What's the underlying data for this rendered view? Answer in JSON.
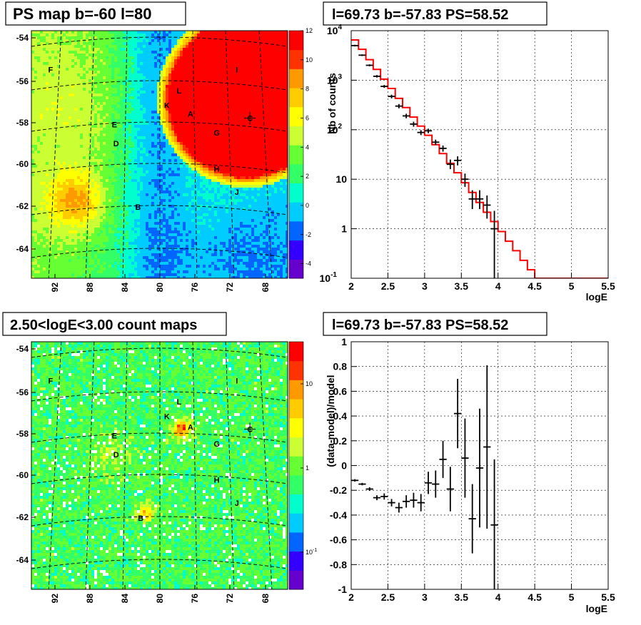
{
  "panels": {
    "ps_map": {
      "title": "PS map b=-60 l=80"
    },
    "spectrum": {
      "title": "l=69.73 b=-57.83 PS=58.52"
    },
    "count_map": {
      "title": "2.50<logE<3.00 count maps"
    },
    "residual": {
      "title": "l=69.73 b=-57.83 PS=58.52"
    }
  },
  "colors": {
    "model_line": "#ff0000",
    "data_points": "#000000",
    "palette": [
      "#6600cc",
      "#3300ff",
      "#0066ff",
      "#00ccff",
      "#00ffcc",
      "#33ff66",
      "#66ff33",
      "#ccff33",
      "#ffff00",
      "#ffcc00",
      "#ff9900",
      "#ff3300",
      "#ff0000"
    ]
  },
  "sky_maps": {
    "b_ticks": [
      "-54",
      "-56",
      "-58",
      "-60",
      "-62",
      "-64"
    ],
    "l_ticks": [
      "92",
      "88",
      "84",
      "80",
      "76",
      "72",
      "68"
    ],
    "sources": [
      "A",
      "B",
      "C",
      "D",
      "E",
      "F",
      "G",
      "H",
      "I",
      "J",
      "K",
      "L"
    ]
  },
  "chart_data": [
    {
      "type": "heatmap",
      "title": "PS map b=-60 l=80",
      "xlabel": "",
      "ylabel": "",
      "x_range": [
        93.5,
        65.5
      ],
      "y_range": [
        -65.3,
        -53.4
      ],
      "colorbar": {
        "min": -5,
        "max": 12,
        "ticks": [
          "12",
          "10",
          "8",
          "6",
          "4",
          "2",
          "0",
          "-2",
          "-4"
        ],
        "scale": "linear"
      },
      "sources": [
        {
          "name": "A",
          "l": 76.5,
          "b": -57.6
        },
        {
          "name": "B",
          "l": 82.5,
          "b": -62.0
        },
        {
          "name": "C",
          "l": 69.7,
          "b": -57.8
        },
        {
          "name": "D",
          "l": 85.0,
          "b": -59.0
        },
        {
          "name": "E",
          "l": 85.2,
          "b": -58.1
        },
        {
          "name": "F",
          "l": 92.5,
          "b": -55.5
        },
        {
          "name": "G",
          "l": 73.5,
          "b": -58.5
        },
        {
          "name": "H",
          "l": 73.5,
          "b": -60.2
        },
        {
          "name": "I",
          "l": 71.2,
          "b": -55.5
        },
        {
          "name": "J",
          "l": 71.2,
          "b": -61.3
        },
        {
          "name": "K",
          "l": 79.2,
          "b": -57.2
        },
        {
          "name": "L",
          "l": 77.8,
          "b": -56.5
        }
      ]
    },
    {
      "type": "line",
      "title": "l=69.73 b=-57.83 PS=58.52",
      "xlabel": "logE",
      "ylabel": "Nb of counts",
      "xlim": [
        2,
        5.5
      ],
      "ylim": [
        0.1,
        10000
      ],
      "yscale": "log",
      "grid": true,
      "x_ticks": [
        "2",
        "2.5",
        "3",
        "3.5",
        "4",
        "4.5",
        "5",
        "5.5"
      ],
      "y_ticks": [
        {
          "v": 0.1,
          "base": "10",
          "exp": "-1"
        },
        {
          "v": 1,
          "base": "1",
          "exp": ""
        },
        {
          "v": 10,
          "base": "10",
          "exp": ""
        },
        {
          "v": 100,
          "base": "10",
          "exp": "2"
        },
        {
          "v": 1000,
          "base": "10",
          "exp": "3"
        },
        {
          "v": 10000,
          "base": "10",
          "exp": "4"
        }
      ],
      "model": {
        "name": "model",
        "bin_width": 0.1,
        "edges": [
          2.0,
          2.1,
          2.2,
          2.3,
          2.4,
          2.5,
          2.6,
          2.7,
          2.8,
          2.9,
          3.0,
          3.1,
          3.2,
          3.3,
          3.4,
          3.5,
          3.6,
          3.7,
          3.8,
          3.9,
          4.0,
          4.1,
          4.2,
          4.3,
          4.4,
          4.5,
          4.6,
          4.7,
          4.8,
          4.9,
          5.0,
          5.1,
          5.2,
          5.3,
          5.4
        ],
        "values": [
          6500,
          4200,
          2600,
          1650,
          1050,
          680,
          430,
          280,
          180,
          118,
          77,
          50,
          33,
          21,
          13.5,
          8.5,
          5.4,
          3.4,
          2.15,
          1.4,
          0.88,
          0.56,
          0.36,
          0.23,
          0.148,
          0.1,
          0.1,
          0.1,
          0.1,
          0.1,
          0.1,
          0.1,
          0.1,
          0.1,
          0.1
        ]
      },
      "data": {
        "name": "data",
        "points": [
          {
            "x": 2.05,
            "y": 5000,
            "lo": 4800,
            "hi": 5200
          },
          {
            "x": 2.15,
            "y": 3200,
            "lo": 3080,
            "hi": 3320
          },
          {
            "x": 2.25,
            "y": 2000,
            "lo": 1910,
            "hi": 2090
          },
          {
            "x": 2.35,
            "y": 1200,
            "lo": 1130,
            "hi": 1270
          },
          {
            "x": 2.45,
            "y": 750,
            "lo": 700,
            "hi": 800
          },
          {
            "x": 2.55,
            "y": 470,
            "lo": 430,
            "hi": 510
          },
          {
            "x": 2.65,
            "y": 300,
            "lo": 270,
            "hi": 330
          },
          {
            "x": 2.75,
            "y": 190,
            "lo": 170,
            "hi": 210
          },
          {
            "x": 2.85,
            "y": 130,
            "lo": 115,
            "hi": 145
          },
          {
            "x": 2.95,
            "y": 88,
            "lo": 78,
            "hi": 98
          },
          {
            "x": 3.05,
            "y": 95,
            "lo": 85,
            "hi": 105
          },
          {
            "x": 3.15,
            "y": 56,
            "lo": 49,
            "hi": 63
          },
          {
            "x": 3.25,
            "y": 42,
            "lo": 36,
            "hi": 48
          },
          {
            "x": 3.35,
            "y": 20,
            "lo": 16,
            "hi": 25
          },
          {
            "x": 3.45,
            "y": 24,
            "lo": 19,
            "hi": 29
          },
          {
            "x": 3.55,
            "y": 10,
            "lo": 7,
            "hi": 13
          },
          {
            "x": 3.65,
            "y": 4,
            "lo": 2.5,
            "hi": 6
          },
          {
            "x": 3.75,
            "y": 4,
            "lo": 2.5,
            "hi": 6
          },
          {
            "x": 3.85,
            "y": 3,
            "lo": 1.6,
            "hi": 4.7
          },
          {
            "x": 3.95,
            "y": 1,
            "lo": 0.1,
            "hi": 2.3
          }
        ]
      }
    },
    {
      "type": "heatmap",
      "title": "2.50<logE<3.00 count maps",
      "xlabel": "",
      "ylabel": "",
      "x_range": [
        93.5,
        65.5
      ],
      "y_range": [
        -65.3,
        -53.4
      ],
      "colorbar": {
        "ticks": [
          "10",
          "1",
          "10"
        ],
        "tick_exp": [
          "",
          "",
          "-1"
        ],
        "scale": "log"
      },
      "sources": [
        {
          "name": "A",
          "l": 76.5,
          "b": -57.7
        },
        {
          "name": "B",
          "l": 82.2,
          "b": -62.0
        },
        {
          "name": "C",
          "l": 69.7,
          "b": -57.8
        },
        {
          "name": "D",
          "l": 85.0,
          "b": -59.0
        },
        {
          "name": "E",
          "l": 85.2,
          "b": -58.1
        },
        {
          "name": "F",
          "l": 92.5,
          "b": -55.5
        },
        {
          "name": "G",
          "l": 73.5,
          "b": -58.5
        },
        {
          "name": "H",
          "l": 73.5,
          "b": -60.2
        },
        {
          "name": "I",
          "l": 71.2,
          "b": -55.5
        },
        {
          "name": "J",
          "l": 71.2,
          "b": -61.3
        },
        {
          "name": "K",
          "l": 79.2,
          "b": -57.2
        },
        {
          "name": "L",
          "l": 77.8,
          "b": -56.5
        }
      ]
    },
    {
      "type": "scatter",
      "title": "l=69.73 b=-57.83 PS=58.52",
      "xlabel": "logE",
      "ylabel": "(data-model)/model",
      "xlim": [
        2,
        5.5
      ],
      "ylim": [
        -1,
        1
      ],
      "grid": true,
      "x_ticks": [
        "2",
        "2.5",
        "3",
        "3.5",
        "4",
        "4.5",
        "5",
        "5.5"
      ],
      "y_ticks": [
        "-1",
        "-0.8",
        "-0.6",
        "-0.4",
        "-0.2",
        "0",
        "0.2",
        "0.4",
        "0.6",
        "0.8",
        "1"
      ],
      "points": [
        {
          "x": 2.05,
          "y": -0.12,
          "err": 0.01
        },
        {
          "x": 2.15,
          "y": -0.15,
          "err": 0.01
        },
        {
          "x": 2.25,
          "y": -0.19,
          "err": 0.015
        },
        {
          "x": 2.35,
          "y": -0.26,
          "err": 0.02
        },
        {
          "x": 2.45,
          "y": -0.25,
          "err": 0.025
        },
        {
          "x": 2.55,
          "y": -0.3,
          "err": 0.03
        },
        {
          "x": 2.65,
          "y": -0.34,
          "err": 0.04
        },
        {
          "x": 2.75,
          "y": -0.29,
          "err": 0.05
        },
        {
          "x": 2.85,
          "y": -0.28,
          "err": 0.06
        },
        {
          "x": 2.95,
          "y": -0.3,
          "err": 0.07
        },
        {
          "x": 3.05,
          "y": -0.14,
          "err": 0.09
        },
        {
          "x": 3.15,
          "y": -0.15,
          "err": 0.11
        },
        {
          "x": 3.25,
          "y": 0.05,
          "err": 0.15
        },
        {
          "x": 3.35,
          "y": -0.19,
          "err": 0.18
        },
        {
          "x": 3.45,
          "y": 0.42,
          "err": 0.28
        },
        {
          "x": 3.55,
          "y": 0.06,
          "err": 0.32
        },
        {
          "x": 3.65,
          "y": -0.43,
          "err": 0.28
        },
        {
          "x": 3.75,
          "y": -0.02,
          "err": 0.48
        },
        {
          "x": 3.85,
          "y": 0.15,
          "err": 0.66
        },
        {
          "x": 3.95,
          "y": -0.48,
          "err": 0.53
        }
      ]
    }
  ]
}
